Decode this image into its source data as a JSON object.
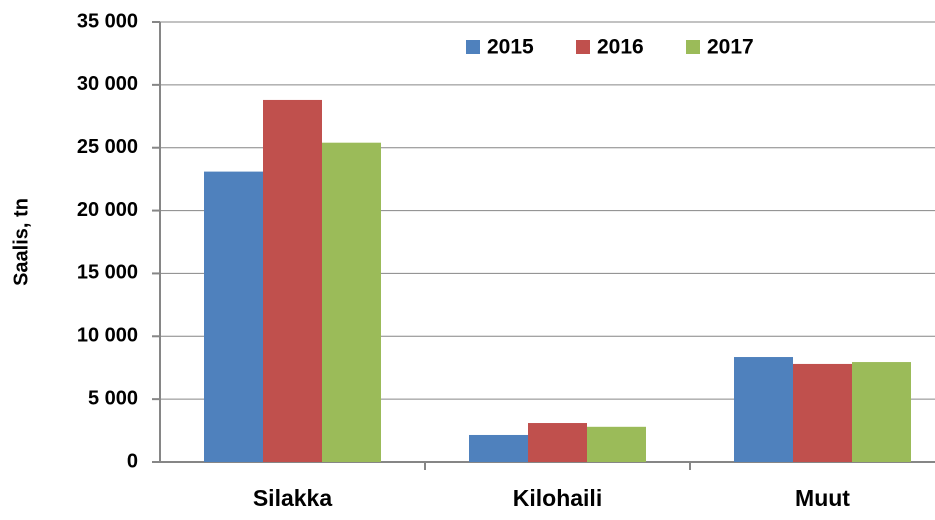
{
  "chart_data": {
    "type": "bar",
    "y_label": "Saalis, tn",
    "categories": [
      "Silakka",
      "Kilohaili",
      "Muut"
    ],
    "series": [
      {
        "name": "2015",
        "color": "#4f81bd",
        "values": [
          23100,
          2150,
          8350
        ]
      },
      {
        "name": "2016",
        "color": "#c0504d",
        "values": [
          28800,
          3100,
          7800
        ]
      },
      {
        "name": "2017",
        "color": "#9bbb59",
        "values": [
          25400,
          2800,
          7950
        ]
      }
    ],
    "ylim": [
      0,
      35000
    ],
    "yticks": [
      0,
      {
        "value": 5000,
        "label": "5 000"
      },
      {
        "value": 10000,
        "label": "10 000"
      },
      {
        "value": 15000,
        "label": "15 000"
      },
      {
        "value": 20000,
        "label": "20 000"
      },
      {
        "value": 25000,
        "label": "25 000"
      },
      {
        "value": 30000,
        "label": "30 000"
      },
      {
        "value": 35000,
        "label": "35 000"
      }
    ],
    "grid": true,
    "legend": "top"
  }
}
